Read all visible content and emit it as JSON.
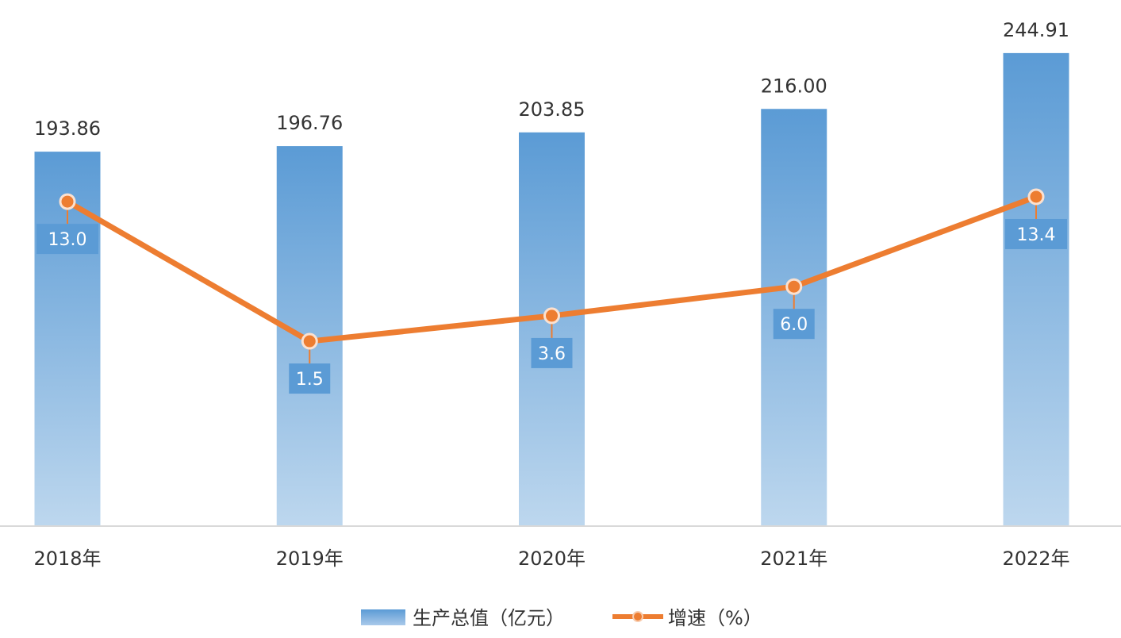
{
  "chart_data": {
    "type": "bar",
    "categories": [
      "2018年",
      "2019年",
      "2020年",
      "2021年",
      "2022年"
    ],
    "series": [
      {
        "name": "生产总值（亿元）",
        "type": "bar",
        "values": [
          193.86,
          196.76,
          203.85,
          216.0,
          244.91
        ],
        "labels": [
          "193.86",
          "196.76",
          "203.85",
          "216.00",
          "244.91"
        ],
        "color": "#5b9bd5"
      },
      {
        "name": "增速（%）",
        "type": "line",
        "values": [
          13.0,
          1.5,
          3.6,
          6.0,
          13.4
        ],
        "labels": [
          "13.0",
          "1.5",
          "3.6",
          "6.0",
          "13.4"
        ],
        "color": "#ed7d31"
      }
    ],
    "title": "",
    "xlabel": "",
    "ylabel": "",
    "legend": "bottom",
    "grid": false
  }
}
